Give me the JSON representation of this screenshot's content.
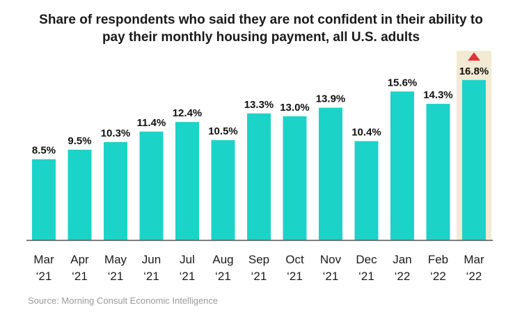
{
  "title_line1": "Share of respondents who said they are not confident in their ability to",
  "title_line2": "pay their monthly housing payment, all U.S. adults",
  "source": "Source: Morning Consult Economic Intelligence",
  "colors": {
    "bar": "#1cd3c8",
    "highlight_bg": "#f3ead3",
    "arrow": "#e0343a",
    "baseline": "#555555",
    "text": "#111111"
  },
  "chart_data": {
    "type": "bar",
    "categories": [
      [
        "Mar",
        "‘21"
      ],
      [
        "Apr",
        "‘21"
      ],
      [
        "May",
        "‘21"
      ],
      [
        "Jun",
        "‘21"
      ],
      [
        "Jul",
        "‘21"
      ],
      [
        "Aug",
        "‘21"
      ],
      [
        "Sep",
        "‘21"
      ],
      [
        "Oct",
        "‘21"
      ],
      [
        "Nov",
        "‘21"
      ],
      [
        "Dec",
        "‘21"
      ],
      [
        "Jan",
        "‘22"
      ],
      [
        "Feb",
        "‘22"
      ],
      [
        "Mar",
        "‘22"
      ]
    ],
    "values": [
      8.5,
      9.5,
      10.3,
      11.4,
      12.4,
      10.5,
      13.3,
      13.0,
      13.9,
      10.4,
      15.6,
      14.3,
      16.8
    ],
    "value_labels": [
      "8.5%",
      "9.5%",
      "10.3%",
      "11.4%",
      "12.4%",
      "10.5%",
      "13.3%",
      "13.0%",
      "13.9%",
      "10.4%",
      "15.6%",
      "14.3%",
      "16.8%"
    ],
    "highlight_index": 12,
    "highlight_marker": "up-arrow",
    "ylim": [
      0,
      20
    ],
    "grid": false,
    "legend": "none"
  }
}
